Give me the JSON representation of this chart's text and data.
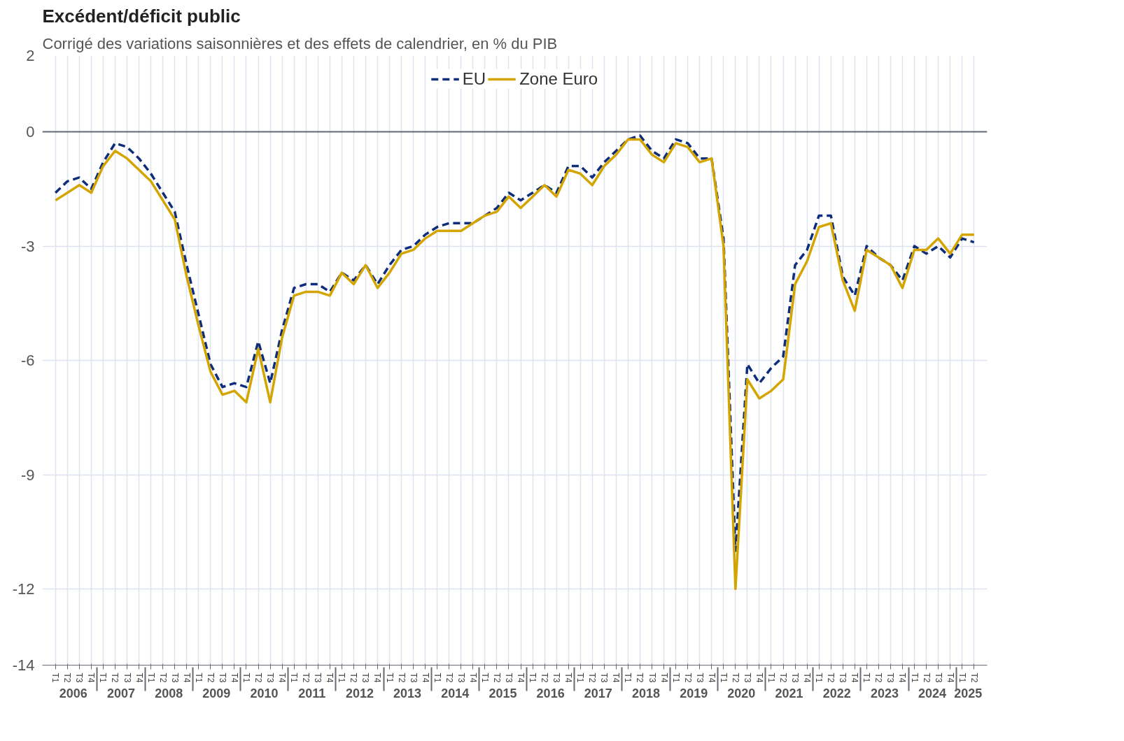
{
  "chart_data": {
    "type": "line",
    "title": "Excédent/déficit public",
    "subtitle": "Corrigé des variations saisonnières et des effets de calendrier, en % du PIB",
    "categories": [
      "T1",
      "T2",
      "T3",
      "T4",
      "T1",
      "T2",
      "T3",
      "T4",
      "T1",
      "T2",
      "T3",
      "T4",
      "T1",
      "T2",
      "T3",
      "T4",
      "T1",
      "T2",
      "T3",
      "T4",
      "T1",
      "T2",
      "T3",
      "T4",
      "T1",
      "T2",
      "T3",
      "T4",
      "T1",
      "T2",
      "T3",
      "T4",
      "T1",
      "T2",
      "T3",
      "T4",
      "T1",
      "T2",
      "T3",
      "T4",
      "T1",
      "T2",
      "T3",
      "T4",
      "T1",
      "T2",
      "T3",
      "T4",
      "T1",
      "T2",
      "T3",
      "T4",
      "T1",
      "T2",
      "T3",
      "T4",
      "T1",
      "T2",
      "T3",
      "T4",
      "T1",
      "T2",
      "T3",
      "T4",
      "T1",
      "T2",
      "T3",
      "T4",
      "T1",
      "T2",
      "T3",
      "T4",
      "T1",
      "T2",
      "T3",
      "T4",
      "T1",
      "T2"
    ],
    "annotations": [
      "2006",
      "2007",
      "2008",
      "2009",
      "2010",
      "2011",
      "2012",
      "2013",
      "2014",
      "2015",
      "2016",
      "2017",
      "2018",
      "2019",
      "2020",
      "2021",
      "2022",
      "2023",
      "2024",
      "2025"
    ],
    "series": [
      {
        "name": "EU",
        "color": "#0e2d7b",
        "line_style": "dashed",
        "values": [
          -1.6,
          -1.3,
          -1.2,
          -1.5,
          -0.8,
          -0.3,
          -0.4,
          -0.7,
          -1.1,
          -1.6,
          -2.1,
          -3.5,
          -4.8,
          -6.1,
          -6.7,
          -6.6,
          -6.7,
          -5.5,
          -6.6,
          -5.2,
          -4.1,
          -4.0,
          -4.0,
          -4.2,
          -3.7,
          -3.9,
          -3.5,
          -4.0,
          -3.5,
          -3.1,
          -3.0,
          -2.7,
          -2.5,
          -2.4,
          -2.4,
          -2.4,
          -2.2,
          -2.0,
          -1.6,
          -1.8,
          -1.6,
          -1.4,
          -1.6,
          -0.9,
          -0.9,
          -1.2,
          -0.8,
          -0.5,
          -0.2,
          -0.1,
          -0.5,
          -0.7,
          -0.2,
          -0.3,
          -0.7,
          -0.7,
          -2.8,
          -11.0,
          -6.1,
          -6.6,
          -6.2,
          -5.9,
          -3.5,
          -3.1,
          -2.2,
          -2.2,
          -3.8,
          -4.3,
          -3.0,
          -3.3,
          -3.5,
          -3.9,
          -3.0,
          -3.2,
          -3.0,
          -3.3,
          -2.8,
          -2.9
        ]
      },
      {
        "name": "Zone Euro",
        "color": "#d4a500",
        "line_style": "solid",
        "values": [
          -1.8,
          -1.6,
          -1.4,
          -1.6,
          -0.9,
          -0.5,
          -0.7,
          -1.0,
          -1.3,
          -1.8,
          -2.3,
          -3.8,
          -5.1,
          -6.3,
          -6.9,
          -6.8,
          -7.1,
          -5.7,
          -7.1,
          -5.4,
          -4.3,
          -4.2,
          -4.2,
          -4.3,
          -3.7,
          -4.0,
          -3.5,
          -4.1,
          -3.7,
          -3.2,
          -3.1,
          -2.8,
          -2.6,
          -2.6,
          -2.6,
          -2.4,
          -2.2,
          -2.1,
          -1.7,
          -2.0,
          -1.7,
          -1.4,
          -1.7,
          -1.0,
          -1.1,
          -1.4,
          -0.9,
          -0.6,
          -0.2,
          -0.2,
          -0.6,
          -0.8,
          -0.3,
          -0.4,
          -0.8,
          -0.7,
          -3.0,
          -12.0,
          -6.5,
          -7.0,
          -6.8,
          -6.5,
          -4.0,
          -3.4,
          -2.5,
          -2.4,
          -3.9,
          -4.7,
          -3.1,
          -3.3,
          -3.5,
          -4.1,
          -3.1,
          -3.1,
          -2.8,
          -3.2,
          -2.7,
          -2.7
        ]
      }
    ],
    "ylim": [
      -14,
      2
    ],
    "yticks": [
      2,
      0,
      -3,
      -6,
      -9,
      -12,
      -14
    ],
    "ref_lines": [
      {
        "axis": "y",
        "value": 0,
        "color": "#666b76"
      }
    ],
    "grid": true,
    "legend": "top"
  }
}
